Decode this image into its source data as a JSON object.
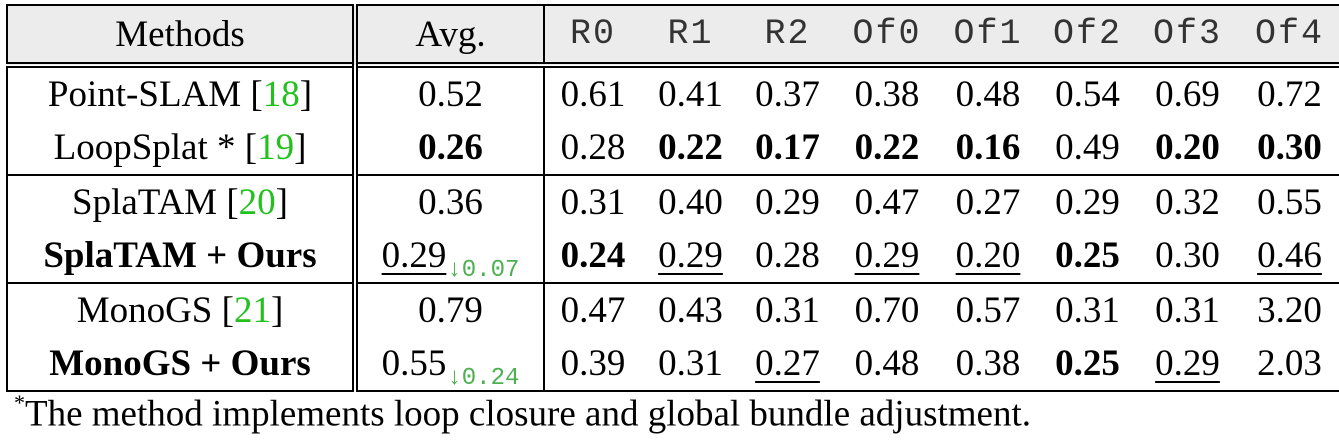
{
  "header": {
    "methods": "Methods",
    "avg": "Avg.",
    "cols": [
      "R0",
      "R1",
      "R2",
      "Of0",
      "Of1",
      "Of2",
      "Of3",
      "Of4"
    ]
  },
  "rows": [
    {
      "method": "Point-SLAM [18]",
      "method_bold": false,
      "avg": "0.52",
      "avg_bold": false,
      "avg_under": false,
      "delta": "",
      "vals": [
        "0.61",
        "0.41",
        "0.37",
        "0.38",
        "0.48",
        "0.54",
        "0.69",
        "0.72"
      ],
      "bold": [
        false,
        false,
        false,
        false,
        false,
        false,
        false,
        false
      ],
      "under": [
        false,
        false,
        false,
        false,
        false,
        false,
        false,
        false
      ]
    },
    {
      "method": "LoopSplat * [19]",
      "method_bold": false,
      "avg": "0.26",
      "avg_bold": true,
      "avg_under": false,
      "delta": "",
      "vals": [
        "0.28",
        "0.22",
        "0.17",
        "0.22",
        "0.16",
        "0.49",
        "0.20",
        "0.30"
      ],
      "bold": [
        false,
        true,
        true,
        true,
        true,
        false,
        true,
        true
      ],
      "under": [
        false,
        false,
        false,
        false,
        false,
        false,
        false,
        false
      ]
    },
    {
      "method": "SplaTAM [20]",
      "method_bold": false,
      "avg": "0.36",
      "avg_bold": false,
      "avg_under": false,
      "delta": "",
      "vals": [
        "0.31",
        "0.40",
        "0.29",
        "0.47",
        "0.27",
        "0.29",
        "0.32",
        "0.55"
      ],
      "bold": [
        false,
        false,
        false,
        false,
        false,
        false,
        false,
        false
      ],
      "under": [
        false,
        false,
        false,
        false,
        false,
        false,
        false,
        false
      ]
    },
    {
      "method": "SplaTAM + Ours",
      "method_bold": true,
      "avg": "0.29",
      "avg_bold": false,
      "avg_under": true,
      "delta": "↓0.07",
      "vals": [
        "0.24",
        "0.29",
        "0.28",
        "0.29",
        "0.20",
        "0.25",
        "0.30",
        "0.46"
      ],
      "bold": [
        true,
        false,
        false,
        false,
        false,
        true,
        false,
        false
      ],
      "under": [
        false,
        true,
        false,
        true,
        true,
        false,
        false,
        true
      ]
    },
    {
      "method": "MonoGS [21]",
      "method_bold": false,
      "avg": "0.79",
      "avg_bold": false,
      "avg_under": false,
      "delta": "",
      "vals": [
        "0.47",
        "0.43",
        "0.31",
        "0.70",
        "0.57",
        "0.31",
        "0.31",
        "3.20"
      ],
      "bold": [
        false,
        false,
        false,
        false,
        false,
        false,
        false,
        false
      ],
      "under": [
        false,
        false,
        false,
        false,
        false,
        false,
        false,
        false
      ]
    },
    {
      "method": "MonoGS + Ours",
      "method_bold": true,
      "avg": "0.55",
      "avg_bold": false,
      "avg_under": false,
      "delta": "↓0.24",
      "vals": [
        "0.39",
        "0.31",
        "0.27",
        "0.48",
        "0.38",
        "0.25",
        "0.29",
        "2.03"
      ],
      "bold": [
        false,
        false,
        false,
        false,
        false,
        true,
        false,
        false
      ],
      "under": [
        false,
        false,
        true,
        false,
        false,
        false,
        true,
        false
      ]
    }
  ],
  "colors": {
    "citation": "#22c11e",
    "delta": "#4caf50",
    "header_bg": "#ececec"
  },
  "footnote": {
    "mark": "*",
    "text": "The method implements loop closure and global bundle adjustment."
  }
}
